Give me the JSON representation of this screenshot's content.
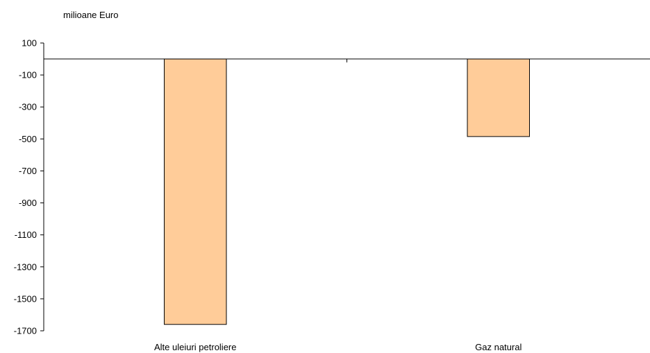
{
  "chart_data": {
    "type": "bar",
    "unit_label": "milioane Euro",
    "categories": [
      "Alte uleiuri petroliere",
      "Gaz natural"
    ],
    "values": [
      -1660,
      -485
    ],
    "yticks": [
      100,
      -100,
      -300,
      -500,
      -700,
      -900,
      -1100,
      -1300,
      -1500,
      -1700
    ],
    "ylim": [
      -1700,
      100
    ],
    "baseline": 0,
    "grid": false,
    "legend": "none",
    "colors": {
      "bar_fill": "#FFCC99",
      "bar_stroke": "#000000",
      "axis": "#000000"
    }
  }
}
